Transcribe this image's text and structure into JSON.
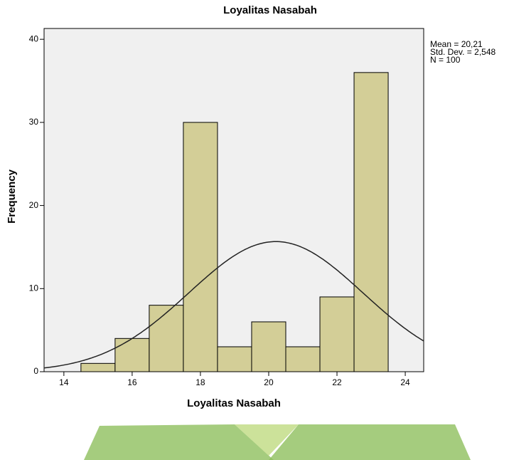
{
  "chart_data": {
    "type": "histogram",
    "title": "Loyalitas Nasabah",
    "x_label": "Loyalitas Nasabah",
    "y_label": "Frequency",
    "bins": [
      14.5,
      15.5,
      16.5,
      17.5,
      18.5,
      19.5,
      20.5,
      21.5,
      22.5,
      23.5
    ],
    "values": [
      1,
      4,
      8,
      30,
      3,
      6,
      3,
      9,
      36
    ],
    "color": "#d3ce97",
    "xlim": [
      13.42,
      24.54
    ],
    "xticks": [
      14,
      16,
      18,
      20,
      22,
      24
    ],
    "ylim": [
      0,
      41.3
    ],
    "yticks": [
      0,
      10,
      20,
      30,
      40
    ],
    "annotations": [
      {
        "value": 20.21,
        "label": "Mean = 20,21"
      },
      {
        "value": 2.548,
        "label": "Std. Dev. = 2,548"
      },
      {
        "value": 100,
        "label": "N = 100"
      }
    ]
  }
}
